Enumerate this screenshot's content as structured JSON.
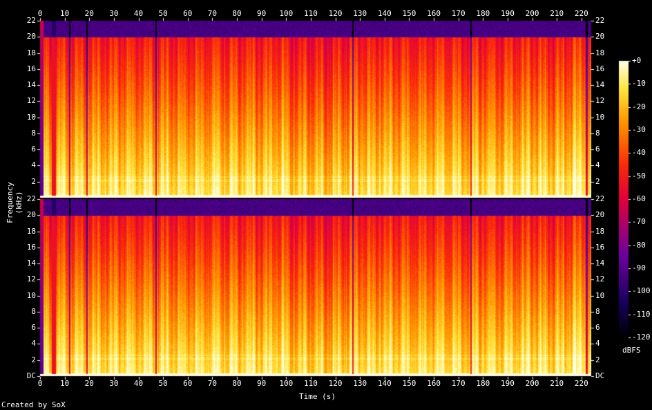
{
  "chart_data": {
    "type": "heatmap",
    "title": "",
    "xlabel": "Time (s)",
    "ylabel": "Frequency (kHz)",
    "colorbar_unit": "dBFS",
    "credit": "Created by SoX",
    "x_ticks": [
      "0",
      "10",
      "20",
      "30",
      "40",
      "50",
      "60",
      "70",
      "80",
      "90",
      "100",
      "110",
      "120",
      "130",
      "140",
      "150",
      "160",
      "170",
      "180",
      "190",
      "200",
      "210",
      "220"
    ],
    "y_ticks_top": [
      "22",
      "20",
      "18",
      "16",
      "14",
      "12",
      "10",
      "8",
      "6",
      "4",
      "2"
    ],
    "y_ticks_bottom": [
      "22",
      "20",
      "18",
      "16",
      "14",
      "12",
      "10",
      "8",
      "6",
      "4",
      "2",
      "DC"
    ],
    "colorbar_ticks": [
      "+0",
      "-10",
      "-20",
      "-30",
      "-40",
      "-50",
      "-60",
      "-70",
      "-80",
      "-90",
      "-100",
      "-110",
      "-120"
    ],
    "xlim": [
      0,
      224
    ],
    "ylim_khz": [
      0,
      22
    ],
    "zlim_dbfs": [
      -120,
      0
    ],
    "channels": 2,
    "lowpass_cutoff_khz": 20,
    "dropouts_s": [
      5,
      12,
      19,
      47,
      127,
      175,
      222
    ]
  }
}
